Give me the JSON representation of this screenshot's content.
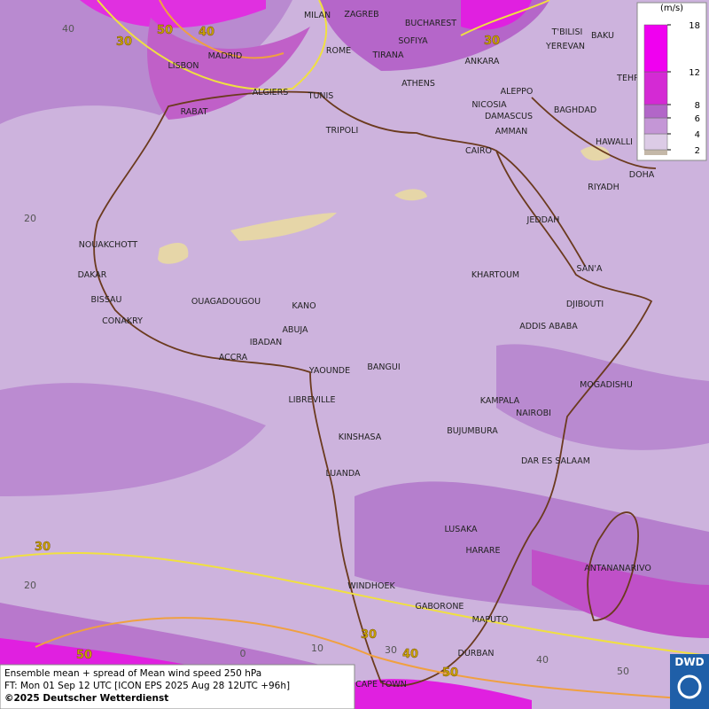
{
  "legend": {
    "unit": "(m/s)",
    "ticks": [
      2,
      4,
      6,
      8,
      12,
      18
    ],
    "colors": [
      "#c4b8a8",
      "#dccbe6",
      "#c496d6",
      "#b266c8",
      "#d42ad4",
      "#f000f0"
    ]
  },
  "cities": [
    "MILAN",
    "ZAGREB",
    "BUCHAREST",
    "T'BILISI",
    "BAKU",
    "SOFIYA",
    "YEREVAN",
    "ROME",
    "TIRANA",
    "ANKARA",
    "MADRID",
    "LISBON",
    "TEHRA",
    "ATHENS",
    "ALGIERS",
    "TUNIS",
    "ALEPPO",
    "NICOSIA",
    "BAGHDAD",
    "RABAT",
    "DAMASCUS",
    "TRIPOLI",
    "AMMAN",
    "HAWALLI",
    "CAIRO",
    "DOHA",
    "RIYADH",
    "JEDDAH",
    "NOUAKCHOTT",
    "SAN'A",
    "DAKAR",
    "KHARTOUM",
    "BISSAU",
    "OUAGADOUGOU",
    "KANO",
    "DJIBOUTI",
    "CONAKRY",
    "ABUJA",
    "ADDIS ABABA",
    "IBADAN",
    "ACCRA",
    "YAOUNDE",
    "BANGUI",
    "MOGADISHU",
    "LIBREVILLE",
    "KAMPALA",
    "NAIROBI",
    "KINSHASA",
    "BUJUMBURA",
    "DAR ES SALAAM",
    "LUANDA",
    "LUSAKA",
    "HARARE",
    "ANTANANARIVO",
    "WINDHOEK",
    "GABORONE",
    "MAPUTO",
    "DURBAN",
    "CAPE TOWN"
  ],
  "contour_labels": [
    30,
    50,
    40,
    30,
    30,
    30,
    40,
    50,
    50
  ],
  "grid_labels": [
    "40",
    "20",
    "20",
    "0",
    "10",
    "30",
    "40",
    "50"
  ],
  "footer": [
    "Ensemble mean + spread of Mean wind speed 250 hPa",
    "FT: Mon 01 Sep 12 UTC [ICON EPS 2025 Aug 28 12UTC +96h]",
    "©2025 Deutscher Wetterdienst"
  ],
  "logo": "DWD"
}
